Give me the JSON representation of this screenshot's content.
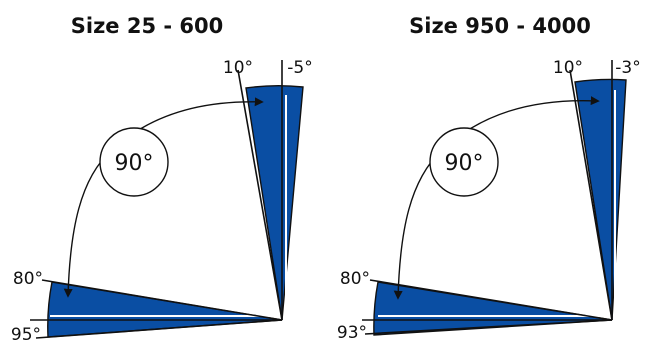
{
  "panels": [
    {
      "title": "Size 25 - 600",
      "rotation_label": "90°",
      "upper_sector": {
        "left_label": "10°",
        "right_label": "-5°"
      },
      "lower_sector": {
        "top_label": "80°",
        "bottom_label": "95°"
      }
    },
    {
      "title": "Size 950 - 4000",
      "rotation_label": "90°",
      "upper_sector": {
        "left_label": "10°",
        "right_label": "-3°"
      },
      "lower_sector": {
        "top_label": "80°",
        "bottom_label": "93°"
      }
    }
  ],
  "colors": {
    "sector_fill": "#0a4ea3",
    "line": "#111111",
    "background": "#ffffff"
  }
}
